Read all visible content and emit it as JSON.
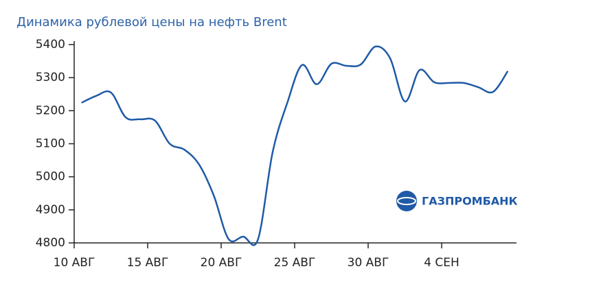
{
  "chart_data": {
    "type": "line",
    "title": "Динамика рублевой цены на нефть Brent",
    "logo": "ГАЗПРОМБАНК",
    "categories": [
      "10 АВГ",
      null,
      null,
      null,
      null,
      "15 АВГ",
      null,
      null,
      null,
      null,
      "20 АВГ",
      null,
      null,
      null,
      null,
      "25 АВГ",
      null,
      null,
      null,
      null,
      "30 АВГ",
      null,
      null,
      null,
      null,
      "4 СЕН",
      null,
      null,
      null,
      null
    ],
    "series": [
      {
        "name": "Brent",
        "color": "#1f5aa6",
        "values": [
          5224,
          5245,
          5255,
          5180,
          5174,
          5170,
          5100,
          5082,
          5037,
          4943,
          4812,
          4819,
          4810,
          5074,
          5224,
          5338,
          5280,
          5342,
          5336,
          5340,
          5394,
          5358,
          5228,
          5323,
          5286,
          5284,
          5284,
          5271,
          5257,
          5320
        ]
      }
    ],
    "ylim": [
      4800,
      5400
    ],
    "yticks": [
      4800,
      4900,
      5000,
      5100,
      5200,
      5300,
      5400
    ]
  }
}
